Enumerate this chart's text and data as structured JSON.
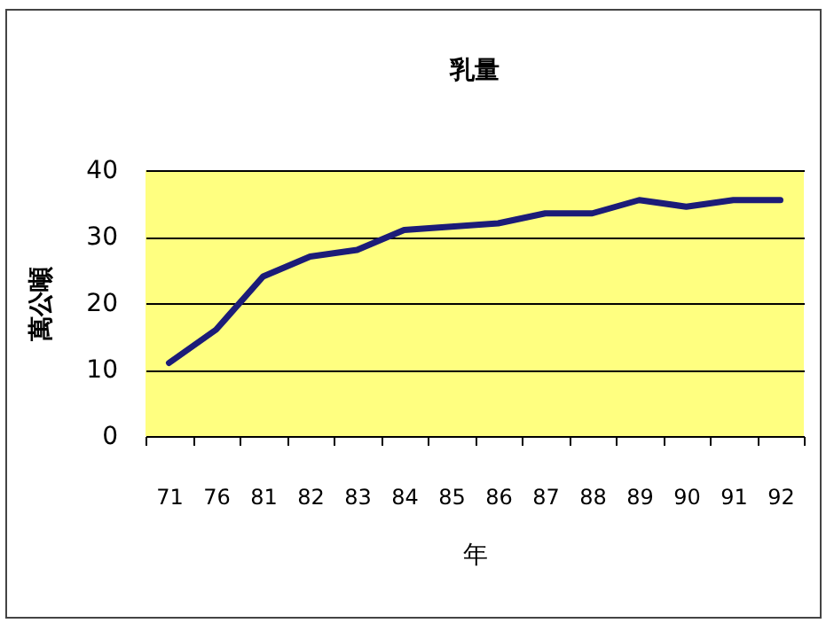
{
  "chart_data": {
    "type": "line",
    "title": "乳量",
    "xlabel": "年",
    "ylabel": "萬公噸",
    "categories": [
      "71",
      "76",
      "81",
      "82",
      "83",
      "84",
      "85",
      "86",
      "87",
      "88",
      "89",
      "90",
      "91",
      "92"
    ],
    "series": [
      {
        "color": "#1c1c78",
        "values": [
          11,
          16,
          24,
          27,
          28,
          31,
          31.5,
          32,
          33.5,
          33.5,
          35.5,
          34.5,
          35.5,
          35.5
        ]
      }
    ],
    "ylim": [
      0,
      40
    ],
    "yticks": [
      0,
      10,
      20,
      30,
      40
    ],
    "grid": "y",
    "legend": false,
    "marker": "none",
    "line_style": "solid"
  }
}
